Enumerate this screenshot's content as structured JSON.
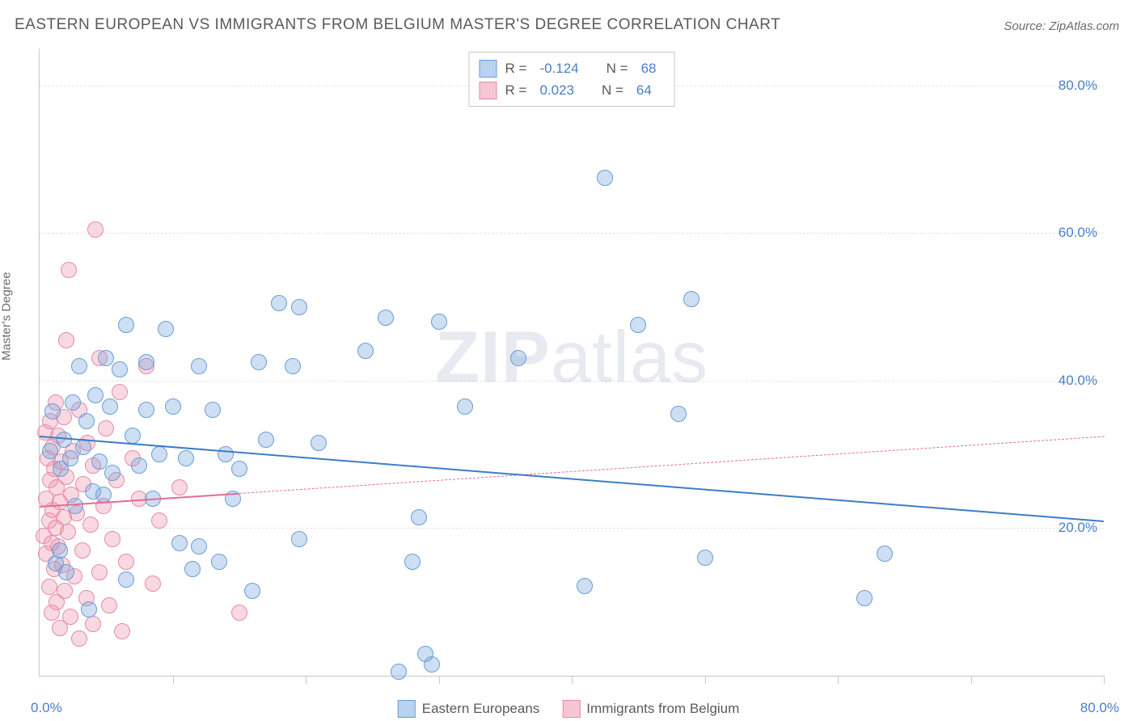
{
  "header": {
    "title": "EASTERN EUROPEAN VS IMMIGRANTS FROM BELGIUM MASTER'S DEGREE CORRELATION CHART",
    "source_prefix": "Source: ",
    "source_name": "ZipAtlas.com"
  },
  "chart": {
    "type": "scatter",
    "y_axis_label": "Master's Degree",
    "xlim": [
      0,
      80
    ],
    "ylim": [
      0,
      85
    ],
    "x_tick_min_label": "0.0%",
    "x_tick_max_label": "80.0%",
    "y_ticks": [
      {
        "value": 20,
        "label": "20.0%"
      },
      {
        "value": 40,
        "label": "40.0%"
      },
      {
        "value": 60,
        "label": "60.0%"
      },
      {
        "value": 80,
        "label": "80.0%"
      }
    ],
    "x_tick_spacing": 10,
    "grid_color": "#e4e4e4",
    "axis_color": "#c8c8c8",
    "background_color": "#ffffff",
    "tick_label_color": "#4a7ec9",
    "point_radius": 9,
    "point_stroke_width": 1.5,
    "watermark": {
      "strong": "ZIP",
      "light": "atlas",
      "color": "rgba(120,140,170,0.18)",
      "fontsize": 90
    }
  },
  "series": {
    "blue": {
      "label": "Eastern Europeans",
      "fill_color": "rgba(116,164,222,0.35)",
      "stroke_color": "#6a9dd6",
      "swatch_fill": "#b9d2ef",
      "swatch_stroke": "#6a9dd6",
      "R": "-0.124",
      "N": "68",
      "trend": {
        "y_at_x0": 32.5,
        "y_at_x80": 21.0,
        "solid_until_x": 80,
        "color": "#3d7cc9",
        "width": 2.5
      },
      "points": [
        [
          0.8,
          30.5
        ],
        [
          1.0,
          35.8
        ],
        [
          1.2,
          15.2
        ],
        [
          1.5,
          17.0
        ],
        [
          1.6,
          28.0
        ],
        [
          1.8,
          32.0
        ],
        [
          2.0,
          14.0
        ],
        [
          2.3,
          29.5
        ],
        [
          2.5,
          37.0
        ],
        [
          2.7,
          23.0
        ],
        [
          3.0,
          42.0
        ],
        [
          3.3,
          31.0
        ],
        [
          3.5,
          34.5
        ],
        [
          3.7,
          9.0
        ],
        [
          4.0,
          25.0
        ],
        [
          4.2,
          38.0
        ],
        [
          4.5,
          29.0
        ],
        [
          4.8,
          24.5
        ],
        [
          5.0,
          43.0
        ],
        [
          5.3,
          36.5
        ],
        [
          5.5,
          27.5
        ],
        [
          6.0,
          41.5
        ],
        [
          6.5,
          47.5
        ],
        [
          6.5,
          13.0
        ],
        [
          7.0,
          32.5
        ],
        [
          7.5,
          28.5
        ],
        [
          8.0,
          36.0
        ],
        [
          8.0,
          42.5
        ],
        [
          8.5,
          24.0
        ],
        [
          9.0,
          30.0
        ],
        [
          9.5,
          47.0
        ],
        [
          10.0,
          36.5
        ],
        [
          10.5,
          18.0
        ],
        [
          11.0,
          29.5
        ],
        [
          11.5,
          14.5
        ],
        [
          12.0,
          42.0
        ],
        [
          12.0,
          17.5
        ],
        [
          13.0,
          36.0
        ],
        [
          13.5,
          15.5
        ],
        [
          14.0,
          30.0
        ],
        [
          14.5,
          24.0
        ],
        [
          15.0,
          28.0
        ],
        [
          16.0,
          11.5
        ],
        [
          16.5,
          42.5
        ],
        [
          17.0,
          32.0
        ],
        [
          18.0,
          50.5
        ],
        [
          19.0,
          42.0
        ],
        [
          19.5,
          18.5
        ],
        [
          19.5,
          50.0
        ],
        [
          21.0,
          31.5
        ],
        [
          24.5,
          44.0
        ],
        [
          26.0,
          48.5
        ],
        [
          27.0,
          0.5
        ],
        [
          28.0,
          15.5
        ],
        [
          28.5,
          21.5
        ],
        [
          29.0,
          3.0
        ],
        [
          29.5,
          1.5
        ],
        [
          30.0,
          48.0
        ],
        [
          32.0,
          36.5
        ],
        [
          36.0,
          43.0
        ],
        [
          41.0,
          12.2
        ],
        [
          42.5,
          67.5
        ],
        [
          45.0,
          47.5
        ],
        [
          48.0,
          35.5
        ],
        [
          49.0,
          51.0
        ],
        [
          50.0,
          16.0
        ],
        [
          62.0,
          10.5
        ],
        [
          63.5,
          16.5
        ]
      ]
    },
    "pink": {
      "label": "Immigrants from Belgium",
      "fill_color": "rgba(238,145,170,0.35)",
      "stroke_color": "#e68aa6",
      "swatch_fill": "#f6c6d5",
      "swatch_stroke": "#e68aa6",
      "R": "0.023",
      "N": "64",
      "trend": {
        "y_at_x0": 23.0,
        "y_at_x80": 32.5,
        "solid_until_x": 15,
        "color": "#e76b93",
        "width": 2.0
      },
      "points": [
        [
          0.3,
          19.0
        ],
        [
          0.4,
          33.0
        ],
        [
          0.5,
          24.0
        ],
        [
          0.5,
          16.5
        ],
        [
          0.6,
          29.5
        ],
        [
          0.7,
          21.0
        ],
        [
          0.7,
          12.0
        ],
        [
          0.8,
          26.5
        ],
        [
          0.8,
          34.5
        ],
        [
          0.9,
          18.0
        ],
        [
          0.9,
          8.5
        ],
        [
          1.0,
          22.5
        ],
        [
          1.0,
          31.0
        ],
        [
          1.1,
          14.5
        ],
        [
          1.1,
          28.0
        ],
        [
          1.2,
          20.0
        ],
        [
          1.2,
          37.0
        ],
        [
          1.3,
          10.0
        ],
        [
          1.3,
          25.5
        ],
        [
          1.4,
          17.5
        ],
        [
          1.4,
          32.5
        ],
        [
          1.5,
          6.5
        ],
        [
          1.5,
          23.5
        ],
        [
          1.6,
          29.0
        ],
        [
          1.7,
          15.0
        ],
        [
          1.8,
          21.5
        ],
        [
          1.8,
          35.0
        ],
        [
          1.9,
          11.5
        ],
        [
          2.0,
          27.0
        ],
        [
          2.0,
          45.5
        ],
        [
          2.1,
          19.5
        ],
        [
          2.2,
          55.0
        ],
        [
          2.3,
          8.0
        ],
        [
          2.4,
          24.5
        ],
        [
          2.5,
          30.5
        ],
        [
          2.6,
          13.5
        ],
        [
          2.8,
          22.0
        ],
        [
          3.0,
          36.0
        ],
        [
          3.0,
          5.0
        ],
        [
          3.2,
          17.0
        ],
        [
          3.3,
          26.0
        ],
        [
          3.5,
          10.5
        ],
        [
          3.6,
          31.5
        ],
        [
          3.8,
          20.5
        ],
        [
          4.0,
          7.0
        ],
        [
          4.0,
          28.5
        ],
        [
          4.2,
          60.5
        ],
        [
          4.5,
          14.0
        ],
        [
          4.5,
          43.0
        ],
        [
          4.8,
          23.0
        ],
        [
          5.0,
          33.5
        ],
        [
          5.2,
          9.5
        ],
        [
          5.5,
          18.5
        ],
        [
          5.8,
          26.5
        ],
        [
          6.0,
          38.5
        ],
        [
          6.2,
          6.0
        ],
        [
          6.5,
          15.5
        ],
        [
          7.0,
          29.5
        ],
        [
          7.5,
          24.0
        ],
        [
          8.0,
          42.0
        ],
        [
          8.5,
          12.5
        ],
        [
          9.0,
          21.0
        ],
        [
          10.5,
          25.5
        ],
        [
          15.0,
          8.5
        ]
      ]
    }
  },
  "stats_box": {
    "R_label": "R =",
    "N_label": "N ="
  },
  "bottom_legend": {
    "items": [
      "blue",
      "pink"
    ]
  }
}
